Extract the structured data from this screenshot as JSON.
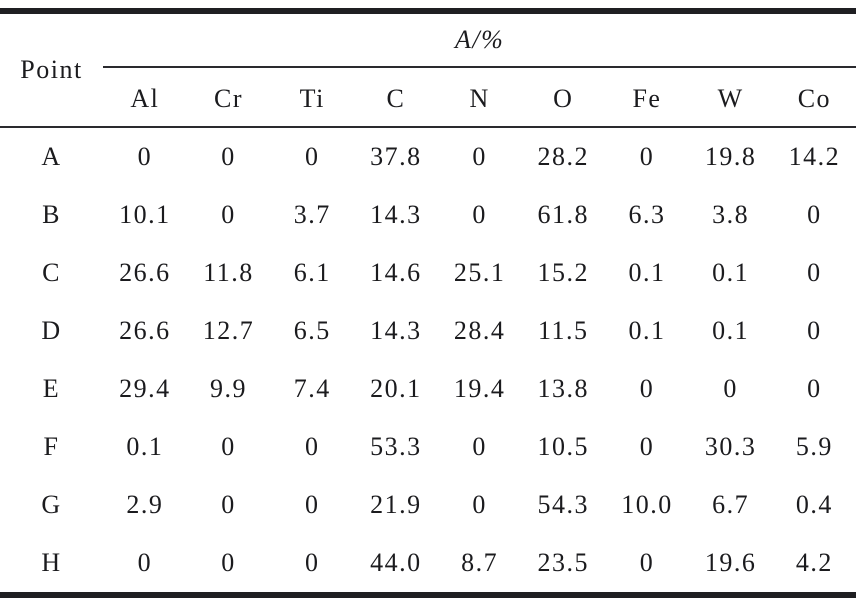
{
  "table": {
    "corner_header": "Point",
    "group_header": "A/%",
    "columns": [
      "Al",
      "Cr",
      "Ti",
      "C",
      "N",
      "O",
      "Fe",
      "W",
      "Co"
    ],
    "rows": [
      {
        "point": "A",
        "values": [
          "0",
          "0",
          "0",
          "37.8",
          "0",
          "28.2",
          "0",
          "19.8",
          "14.2"
        ]
      },
      {
        "point": "B",
        "values": [
          "10.1",
          "0",
          "3.7",
          "14.3",
          "0",
          "61.8",
          "6.3",
          "3.8",
          "0"
        ]
      },
      {
        "point": "C",
        "values": [
          "26.6",
          "11.8",
          "6.1",
          "14.6",
          "25.1",
          "15.2",
          "0.1",
          "0.1",
          "0"
        ]
      },
      {
        "point": "D",
        "values": [
          "26.6",
          "12.7",
          "6.5",
          "14.3",
          "28.4",
          "11.5",
          "0.1",
          "0.1",
          "0"
        ]
      },
      {
        "point": "E",
        "values": [
          "29.4",
          "9.9",
          "7.4",
          "20.1",
          "19.4",
          "13.8",
          "0",
          "0",
          "0"
        ]
      },
      {
        "point": "F",
        "values": [
          "0.1",
          "0",
          "0",
          "53.3",
          "0",
          "10.5",
          "0",
          "30.3",
          "5.9"
        ]
      },
      {
        "point": "G",
        "values": [
          "2.9",
          "0",
          "0",
          "21.9",
          "0",
          "54.3",
          "10.0",
          "6.7",
          "0.4"
        ]
      },
      {
        "point": "H",
        "values": [
          "0",
          "0",
          "0",
          "44.0",
          "8.7",
          "23.5",
          "0",
          "19.6",
          "4.2"
        ]
      }
    ],
    "colors": {
      "text": "#1b1b1e",
      "thick_rule": "#1f1f22",
      "thin_rule": "#2a2a2e",
      "background": "#ffffff"
    }
  },
  "chart_data": {
    "type": "table",
    "title": "A/%",
    "row_header": "Point",
    "categories": [
      "Al",
      "Cr",
      "Ti",
      "C",
      "N",
      "O",
      "Fe",
      "W",
      "Co"
    ],
    "series": [
      {
        "name": "A",
        "values": [
          0,
          0,
          0,
          37.8,
          0,
          28.2,
          0,
          19.8,
          14.2
        ]
      },
      {
        "name": "B",
        "values": [
          10.1,
          0,
          3.7,
          14.3,
          0,
          61.8,
          6.3,
          3.8,
          0
        ]
      },
      {
        "name": "C",
        "values": [
          26.6,
          11.8,
          6.1,
          14.6,
          25.1,
          15.2,
          0.1,
          0.1,
          0
        ]
      },
      {
        "name": "D",
        "values": [
          26.6,
          12.7,
          6.5,
          14.3,
          28.4,
          11.5,
          0.1,
          0.1,
          0
        ]
      },
      {
        "name": "E",
        "values": [
          29.4,
          9.9,
          7.4,
          20.1,
          19.4,
          13.8,
          0,
          0,
          0
        ]
      },
      {
        "name": "F",
        "values": [
          0.1,
          0,
          0,
          53.3,
          0,
          10.5,
          0,
          30.3,
          5.9
        ]
      },
      {
        "name": "G",
        "values": [
          2.9,
          0,
          0,
          21.9,
          0,
          54.3,
          10.0,
          6.7,
          0.4
        ]
      },
      {
        "name": "H",
        "values": [
          0,
          0,
          0,
          44.0,
          8.7,
          23.5,
          0,
          19.6,
          4.2
        ]
      }
    ]
  }
}
